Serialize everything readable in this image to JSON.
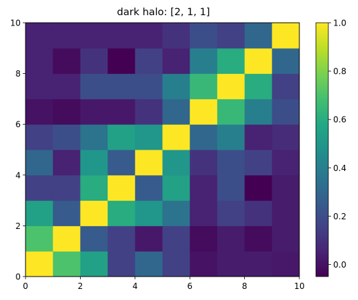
{
  "chart_data": {
    "type": "heatmap",
    "title": "dark halo: [2, 1, 1]",
    "xlabel": "",
    "ylabel": "",
    "xlim": [
      0,
      10
    ],
    "ylim": [
      0,
      10
    ],
    "x_ticks": [
      "0",
      "2",
      "4",
      "6",
      "8",
      "10"
    ],
    "y_ticks": [
      "0",
      "2",
      "4",
      "6",
      "8",
      "10"
    ],
    "colorbar": {
      "range": [
        -0.05,
        1.0
      ],
      "ticks": [
        "0.0",
        "0.2",
        "0.4",
        "0.6",
        "0.8",
        "1.0"
      ],
      "tick_values": [
        0.0,
        0.2,
        0.4,
        0.6,
        0.8,
        1.0
      ]
    },
    "colormap": "viridis",
    "grid": false,
    "cells_row_from_bottom": [
      [
        1.0,
        0.7,
        0.55,
        0.15,
        0.3,
        0.15,
        0.0,
        0.03,
        0.03,
        0.02
      ],
      [
        0.7,
        1.0,
        0.25,
        0.15,
        0.02,
        0.15,
        -0.02,
        0.03,
        -0.02,
        0.03
      ],
      [
        0.55,
        0.25,
        1.0,
        0.6,
        0.5,
        0.35,
        0.05,
        0.15,
        0.1,
        0.03
      ],
      [
        0.15,
        0.15,
        0.6,
        1.0,
        0.25,
        0.55,
        0.05,
        0.2,
        -0.05,
        0.03
      ],
      [
        0.3,
        0.05,
        0.5,
        0.25,
        1.0,
        0.5,
        0.1,
        0.2,
        0.15,
        0.05
      ],
      [
        0.15,
        0.2,
        0.35,
        0.55,
        0.5,
        1.0,
        0.3,
        0.4,
        0.05,
        0.08
      ],
      [
        0.0,
        -0.02,
        0.02,
        0.02,
        0.1,
        0.3,
        1.0,
        0.65,
        0.4,
        0.2
      ],
      [
        0.05,
        0.05,
        0.2,
        0.2,
        0.2,
        0.4,
        0.65,
        1.0,
        0.6,
        0.15
      ],
      [
        0.05,
        -0.02,
        0.1,
        -0.05,
        0.15,
        0.05,
        0.4,
        0.6,
        1.0,
        0.3
      ],
      [
        0.05,
        0.05,
        0.05,
        0.05,
        0.05,
        0.1,
        0.2,
        0.15,
        0.3,
        1.0
      ]
    ]
  }
}
